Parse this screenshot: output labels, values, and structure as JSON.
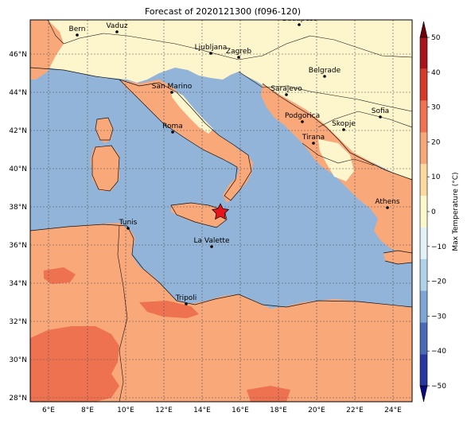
{
  "title": "Forecast of 2020121300 (f096-120)",
  "colorbar": {
    "label": "Max Temperature (°C)",
    "ticks": [
      50,
      40,
      30,
      20,
      10,
      0,
      -10,
      -20,
      -30,
      -40,
      -50
    ],
    "colors": [
      "#0a0a82",
      "#2838a0",
      "#4a6ab6",
      "#7ea6d4",
      "#b0d2e8",
      "#e2f2f8",
      "#fdf7cc",
      "#fbd9a0",
      "#f6a878",
      "#ef7252",
      "#d63a2a",
      "#a8141c",
      "#700008"
    ]
  },
  "axes": {
    "lon_labels": [
      "6°E",
      "8°E",
      "10°E",
      "12°E",
      "14°E",
      "16°E",
      "18°E",
      "20°E",
      "22°E",
      "24°E"
    ],
    "lat_labels": [
      "46°N",
      "44°N",
      "42°N",
      "40°N",
      "38°N",
      "36°N",
      "34°N",
      "32°N",
      "30°N",
      "28°N"
    ]
  },
  "legend_colors": {
    "sea": "#92b4d8",
    "land_warm": "#f9a87a",
    "land_mild": "#fdf5cc",
    "land_hot": "#ee7150",
    "marker_star": "#e8141c"
  },
  "cities": [
    {
      "name": "Bern"
    },
    {
      "name": "Vaduz"
    },
    {
      "name": "Budapest"
    },
    {
      "name": "Ljubljana"
    },
    {
      "name": "Zagreb"
    },
    {
      "name": "Belgrade"
    },
    {
      "name": "San Marino"
    },
    {
      "name": "Sarajevo"
    },
    {
      "name": "Sofia"
    },
    {
      "name": "Podgorica"
    },
    {
      "name": "Skopje"
    },
    {
      "name": "Roma"
    },
    {
      "name": "Tirana"
    },
    {
      "name": "Athens"
    },
    {
      "name": "Tunis"
    },
    {
      "name": "La Valette"
    },
    {
      "name": "Tripoli"
    }
  ]
}
